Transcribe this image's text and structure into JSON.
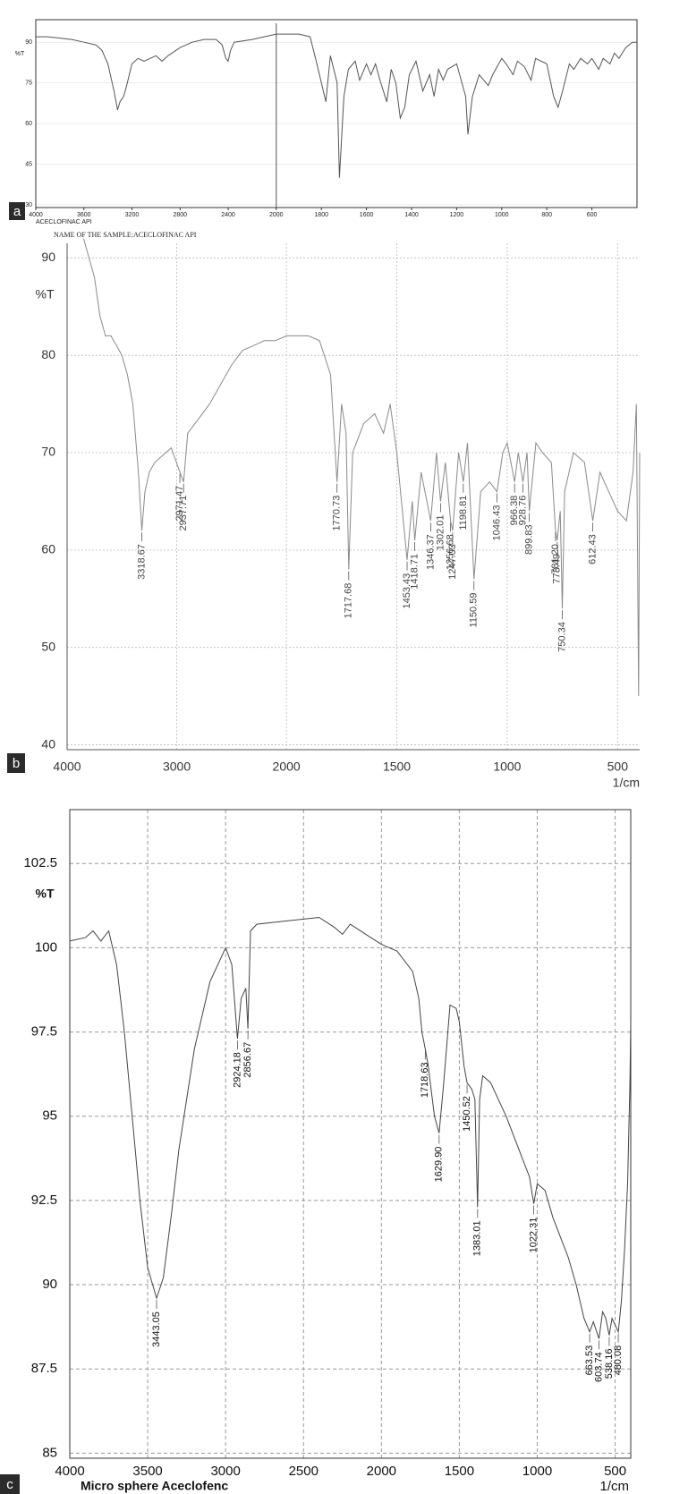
{
  "chart_data": [
    {
      "type": "line",
      "panel_label": "a",
      "y_label": "%T",
      "sample_label": "ACECLOFINAC API",
      "caption": "NAME OF THE SAMPLE:ACECLOFINAC API",
      "color": "#555555",
      "grid": true,
      "x_break": 2000,
      "xlim": [
        4000,
        400
      ],
      "ylim": [
        29,
        95
      ],
      "xticks": [
        4000,
        3600,
        3200,
        2800,
        2400,
        2000,
        1800,
        1600,
        1400,
        1200,
        1000,
        800,
        600
      ],
      "yticks": [
        90,
        75,
        60,
        45,
        30
      ],
      "x": [
        4000,
        3900,
        3800,
        3700,
        3600,
        3500,
        3450,
        3400,
        3350,
        3320,
        3300,
        3270,
        3250,
        3200,
        3150,
        3100,
        3050,
        3000,
        2950,
        2900,
        2800,
        2700,
        2600,
        2500,
        2450,
        2420,
        2400,
        2380,
        2350,
        2200,
        2100,
        2000,
        1950,
        1900,
        1850,
        1820,
        1780,
        1760,
        1730,
        1720,
        1700,
        1680,
        1650,
        1630,
        1600,
        1580,
        1560,
        1540,
        1510,
        1490,
        1470,
        1450,
        1430,
        1410,
        1380,
        1350,
        1320,
        1300,
        1280,
        1260,
        1240,
        1200,
        1160,
        1150,
        1130,
        1100,
        1060,
        1040,
        1000,
        980,
        950,
        930,
        900,
        870,
        850,
        800,
        770,
        750,
        730,
        700,
        680,
        650,
        620,
        600,
        570,
        550,
        520,
        500,
        480,
        450,
        420,
        400
      ],
      "values": [
        92,
        92,
        91.5,
        91,
        90,
        89,
        87,
        82,
        72,
        65,
        68,
        70,
        73,
        82,
        84,
        83,
        84,
        85,
        83,
        85,
        88,
        90,
        91,
        91,
        89,
        84,
        83,
        87,
        90,
        91,
        92,
        93,
        93,
        93,
        92,
        82,
        68,
        85,
        75,
        40,
        70,
        80,
        83,
        76,
        82,
        78,
        82,
        76,
        68,
        80,
        75,
        62,
        66,
        78,
        83,
        72,
        78,
        70,
        80,
        76,
        80,
        82,
        70,
        56,
        70,
        78,
        74,
        78,
        84,
        82,
        78,
        83,
        81,
        76,
        84,
        82,
        70,
        66,
        72,
        82,
        80,
        84,
        82,
        84,
        80,
        84,
        82,
        86,
        84,
        88,
        90,
        90
      ]
    },
    {
      "type": "line",
      "panel_label": "b",
      "y_label": "%T",
      "x_label": "1/cm",
      "color": "#8a8a8a",
      "grid": true,
      "x_break": 2000,
      "xlim": [
        4000,
        400
      ],
      "ylim": [
        39.5,
        91.5
      ],
      "xticks": [
        4000,
        3000,
        2000,
        1500,
        1000,
        500
      ],
      "yticks": [
        40,
        50,
        60,
        70,
        80,
        90
      ],
      "x": [
        3850,
        3800,
        3750,
        3700,
        3650,
        3600,
        3550,
        3500,
        3450,
        3400,
        3350,
        3318.67,
        3290,
        3250,
        3200,
        3100,
        3050,
        2971.47,
        2937.71,
        2900,
        2800,
        2700,
        2600,
        2500,
        2400,
        2300,
        2200,
        2100,
        2000,
        1900,
        1850,
        1800,
        1770.73,
        1750,
        1730,
        1717.68,
        1700,
        1650,
        1600,
        1560,
        1530,
        1500,
        1453.43,
        1430,
        1418.71,
        1390,
        1346.37,
        1320,
        1302.01,
        1280,
        1256.68,
        1247.03,
        1220,
        1198.81,
        1180,
        1150.59,
        1120,
        1080,
        1046.43,
        1020,
        1000,
        966.38,
        950,
        928.76,
        910,
        899.83,
        870,
        840,
        800,
        781.2,
        773.49,
        760,
        750.34,
        740,
        700,
        650,
        612.43,
        580,
        540,
        500,
        460,
        430,
        415,
        405,
        400
      ],
      "values": [
        92,
        90,
        88,
        84,
        82,
        82,
        81,
        80,
        78,
        75,
        68,
        62,
        66,
        68,
        69,
        70,
        70.5,
        68,
        67,
        72,
        73.5,
        75,
        77,
        79,
        80.5,
        81,
        81.5,
        81.5,
        82,
        82,
        81.5,
        78,
        67,
        75,
        72,
        58,
        70,
        73,
        74,
        72,
        75,
        70,
        59,
        65,
        61,
        68,
        63,
        70,
        65,
        69,
        63,
        62,
        70,
        67,
        71,
        57,
        66,
        67,
        66,
        70,
        71,
        67,
        70,
        67,
        70,
        64,
        71,
        70,
        69,
        62,
        61,
        64,
        54,
        66,
        70,
        69,
        63,
        68,
        66,
        64,
        63,
        68,
        75,
        45,
        70
      ],
      "peaks": {
        "x": [
          3318.67,
          2971.47,
          2937.71,
          1770.73,
          1717.68,
          1453.43,
          1418.71,
          1346.37,
          1302.01,
          1256.68,
          1247.03,
          1198.81,
          1150.59,
          1046.43,
          966.38,
          928.76,
          899.83,
          781.2,
          773.49,
          750.34,
          612.43
        ],
        "y": [
          62,
          68,
          67,
          67,
          58,
          59,
          61,
          63,
          65,
          63,
          62,
          67,
          57,
          66,
          67,
          67,
          64,
          62,
          61,
          54,
          63
        ],
        "labels": [
          "3318.67",
          "2971.47",
          "2937.71",
          "1770.73",
          "1717.68",
          "1453.43",
          "1418.71",
          "1346.37",
          "1302.01",
          "1256.68",
          "1247.03",
          "1198.81",
          "1150.59",
          "1046.43",
          "966.38",
          "928.76",
          "899.83",
          "781.20",
          "773.49",
          "750.34",
          "612.43"
        ]
      }
    },
    {
      "type": "line",
      "panel_label": "c",
      "y_label": "%T",
      "x_label": "1/cm",
      "caption": "Micro sphere Aceclofenc",
      "color": "#444444",
      "grid": true,
      "xlim": [
        4000,
        400
      ],
      "ylim": [
        84.85,
        104.1
      ],
      "xticks": [
        4000,
        3500,
        3000,
        2500,
        2000,
        1500,
        1000,
        500
      ],
      "yticks": [
        85,
        87.5,
        90,
        92.5,
        95,
        97.5,
        100,
        102.5
      ],
      "x": [
        4000,
        3900,
        3850,
        3800,
        3750,
        3700,
        3650,
        3600,
        3550,
        3500,
        3443.05,
        3400,
        3350,
        3300,
        3200,
        3100,
        3000,
        2960,
        2924.18,
        2900,
        2870,
        2856.67,
        2840,
        2800,
        2600,
        2400,
        2300,
        2250,
        2200,
        2100,
        2000,
        1900,
        1800,
        1760,
        1740,
        1718.63,
        1700,
        1660,
        1629.9,
        1600,
        1560,
        1520,
        1500,
        1470,
        1450.52,
        1420,
        1400,
        1383.01,
        1370,
        1350,
        1300,
        1200,
        1100,
        1050,
        1022.31,
        1000,
        950,
        900,
        800,
        750,
        700,
        663.53,
        640,
        603.74,
        580,
        560,
        538.16,
        520,
        500,
        480.08,
        460,
        440,
        420,
        405,
        400
      ],
      "values": [
        100.2,
        100.3,
        100.5,
        100.2,
        100.5,
        99.5,
        97.5,
        95,
        92.5,
        90.5,
        89.6,
        90.2,
        92,
        94,
        97,
        99,
        100,
        99.5,
        97.3,
        98.5,
        98.8,
        97.6,
        100.5,
        100.7,
        100.8,
        100.9,
        100.6,
        100.4,
        100.7,
        100.4,
        100.1,
        99.9,
        99.3,
        98.5,
        97.5,
        97,
        96.5,
        95,
        94.5,
        96,
        98.3,
        98.2,
        97.8,
        96.5,
        96,
        95.8,
        95.5,
        92.3,
        95.5,
        96.2,
        96,
        95,
        93.8,
        93.2,
        92.4,
        93,
        92.8,
        92,
        90.8,
        90,
        89,
        88.6,
        88.9,
        88.4,
        89.2,
        89,
        88.5,
        89,
        88.8,
        88.6,
        89.5,
        91,
        93,
        96,
        97.8
      ],
      "peaks": {
        "x": [
          3443.05,
          2924.18,
          2856.67,
          1718.63,
          1629.9,
          1450.52,
          1383.01,
          1022.31,
          663.53,
          603.74,
          538.16,
          480.08
        ],
        "y": [
          89.6,
          97.3,
          97.6,
          97,
          94.5,
          96,
          92.3,
          92.4,
          88.6,
          88.4,
          88.5,
          88.6
        ],
        "labels": [
          "3443.05",
          "2924.18",
          "2856.67",
          "1718.63",
          "1629.90",
          "1450.52",
          "1383.01",
          "1022.31",
          "663.53",
          "603.74",
          "538.16",
          "480.08"
        ]
      }
    }
  ]
}
